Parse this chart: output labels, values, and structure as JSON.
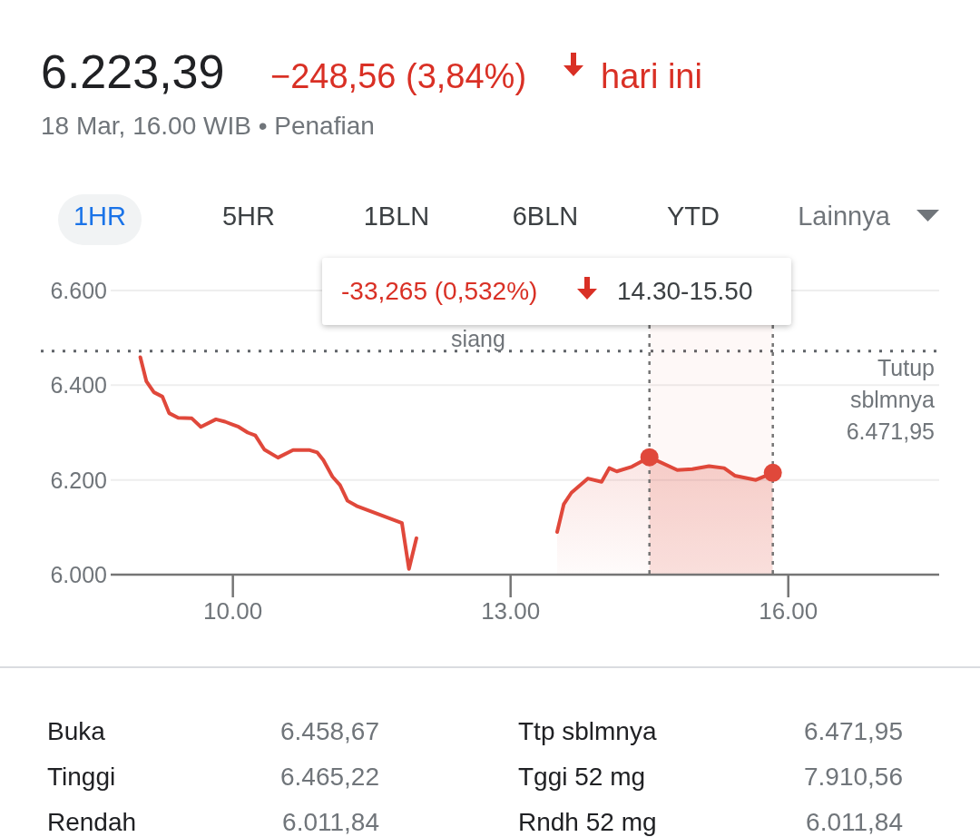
{
  "chart_data": {
    "type": "line",
    "title": "6.223,39",
    "subtitle": "−248,56 (3,84%)",
    "annotations": [
      "hari ini",
      "18 Mar, 16.00 WIB • Penafian",
      "1HR",
      "5HR",
      "1BLN",
      "6BLN",
      "YTD",
      "Lainnya",
      "-33,265 (0,532%)",
      "14.30-15.50",
      "siang",
      "Buka",
      "6.458,67",
      "Ttp sblmnya",
      "6.471,95",
      "Tinggi",
      "6.465,22",
      "Tggi 52 mg",
      "7.910,56",
      "Rendah",
      "6.011,84",
      "Rndh 52 mg",
      "6.011,84"
    ],
    "xlim": [
      8.68,
      17.63
    ],
    "ylim": [
      6000,
      6600
    ],
    "xticks": [
      {
        "value": 10,
        "label": "10.00"
      },
      {
        "value": 13,
        "label": "13.00"
      },
      {
        "value": 16,
        "label": "16.00"
      }
    ],
    "yticks": [
      {
        "value": 6000,
        "label": "6.000"
      },
      {
        "value": 6200,
        "label": "6.200"
      },
      {
        "value": 6400,
        "label": "6.400"
      },
      {
        "value": 6600,
        "label": "6.600"
      }
    ],
    "grid": "y",
    "series": [
      {
        "color": "#e0483b",
        "x": [
          9.0,
          9.066,
          9.147,
          9.238,
          9.311,
          9.409,
          9.556,
          9.654,
          9.817,
          9.915,
          10.062,
          10.16,
          10.242,
          10.34,
          10.487,
          10.65,
          10.83,
          10.912,
          10.977,
          11.075,
          11.157,
          11.238,
          11.336,
          11.826,
          11.902,
          11.983
        ],
        "values": [
          6459,
          6408,
          6385,
          6376,
          6341,
          6331,
          6330,
          6312,
          6328,
          6323,
          6312,
          6300,
          6294,
          6264,
          6247,
          6263,
          6263,
          6258,
          6242,
          6207,
          6189,
          6156,
          6145,
          6109,
          6012,
          6077
        ]
      },
      {
        "type": "area",
        "color": "#e0483b",
        "x": [
          13.503,
          13.575,
          13.657,
          13.836,
          13.983,
          14.066,
          14.147,
          14.311,
          14.5,
          14.801,
          14.964,
          15.144,
          15.307,
          15.422,
          15.65,
          15.833
        ],
        "values": [
          6090,
          6149,
          6173,
          6203,
          6196,
          6225,
          6218,
          6228,
          6248,
          6221,
          6223,
          6229,
          6225,
          6209,
          6200,
          6215
        ]
      }
    ],
    "ref_lines": [
      {
        "axis": "y",
        "value": 6471.95,
        "label": "Tutup sblmnya 6.471,95",
        "color": "#5f6368",
        "line_style": "dotted"
      },
      {
        "axis": "x",
        "value": 14.5,
        "color": "#757575",
        "line_style": "dotted"
      },
      {
        "axis": "x",
        "value": 15.833,
        "color": "#757575",
        "line_style": "dotted"
      }
    ],
    "bands": [
      {
        "axis": "x",
        "from": 14.5,
        "to": 15.833,
        "color": "#e0483b"
      }
    ]
  }
}
